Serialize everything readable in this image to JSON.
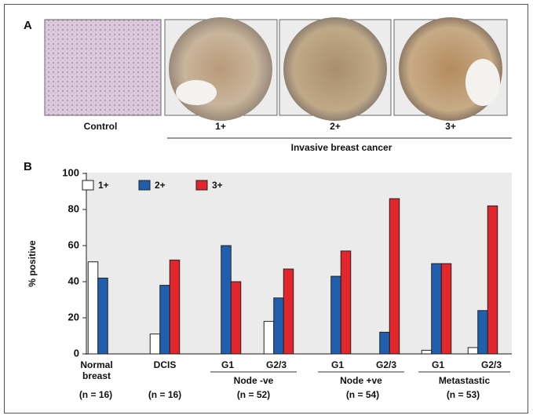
{
  "panel_a": {
    "label": "A",
    "images": [
      "Control",
      "1+",
      "2+",
      "3+"
    ],
    "caption": "Invasive breast cancer"
  },
  "panel_b": {
    "label": "B",
    "chart_data": {
      "type": "bar",
      "y_label": "% positive",
      "categories": [
        "Normal breast",
        "DCIS",
        "G1",
        "G2/3",
        "G1",
        "G2/3",
        "G1",
        "G2/3"
      ],
      "group_labels": [
        "Node -ve",
        "Node +ve",
        "Metastastic"
      ],
      "n_labels": [
        "(n = 16)",
        "(n = 16)",
        "(n = 52)",
        "(n = 54)",
        "(n = 53)"
      ],
      "series": [
        {
          "name": "1+",
          "color": "#ffffff",
          "values": [
            51,
            11,
            0,
            18,
            0,
            0,
            2,
            3.5
          ]
        },
        {
          "name": "2+",
          "color": "#1f5fae",
          "values": [
            42,
            38,
            60,
            31,
            43,
            12,
            50,
            24
          ]
        },
        {
          "name": "3+",
          "color": "#e3262b",
          "values": [
            0,
            52,
            40,
            47,
            57,
            86,
            50,
            82
          ]
        }
      ],
      "ylim": [
        0,
        100
      ],
      "yticks": [
        0,
        20,
        40,
        60,
        80,
        100
      ],
      "grid": false
    }
  }
}
